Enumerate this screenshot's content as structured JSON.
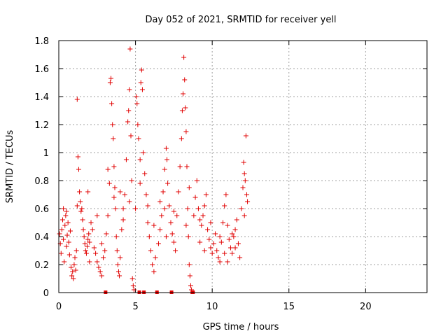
{
  "chart_data": {
    "type": "scatter",
    "title": "Day 052 of 2021, SRMTID for receiver yell",
    "xlabel": "GPS time / hours",
    "ylabel": "SRMTID / TECUs",
    "xlim": [
      0,
      24
    ],
    "ylim": [
      0,
      1.8
    ],
    "xticks": [
      0,
      5,
      10,
      15,
      20
    ],
    "xtick_labels": [
      "0",
      "5",
      "10",
      "15",
      "20"
    ],
    "yticks": [
      0,
      0.2,
      0.4,
      0.6,
      0.8,
      1,
      1.2,
      1.4,
      1.6,
      1.8
    ],
    "ytick_labels": [
      "0",
      "0.2",
      "0.4",
      "0.6",
      "0.8",
      "1",
      "1.2",
      "1.4",
      "1.6",
      "1.8"
    ],
    "grid": true,
    "marker": "plus",
    "color": "#e00000",
    "series": [
      {
        "name": "SRMTID",
        "points": [
          [
            0.05,
            0.42
          ],
          [
            0.1,
            0.35
          ],
          [
            0.15,
            0.28
          ],
          [
            0.2,
            0.45
          ],
          [
            0.25,
            0.52
          ],
          [
            0.3,
            0.38
          ],
          [
            0.35,
            0.22
          ],
          [
            0.4,
            0.48
          ],
          [
            0.45,
            0.55
          ],
          [
            0.5,
            0.33
          ],
          [
            0.55,
            0.41
          ],
          [
            0.6,
            0.5
          ],
          [
            0.65,
            0.36
          ],
          [
            0.7,
            0.27
          ],
          [
            0.75,
            0.44
          ],
          [
            0.8,
            0.18
          ],
          [
            0.85,
            0.12
          ],
          [
            0.9,
            0.15
          ],
          [
            0.95,
            0.1
          ],
          [
            1.0,
            0.2
          ],
          [
            1.05,
            0.25
          ],
          [
            1.1,
            0.16
          ],
          [
            1.15,
            0.3
          ],
          [
            1.2,
            1.38
          ],
          [
            1.25,
            0.97
          ],
          [
            1.3,
            0.88
          ],
          [
            1.35,
            0.72
          ],
          [
            1.4,
            0.65
          ],
          [
            1.45,
            0.58
          ],
          [
            1.5,
            0.6
          ],
          [
            1.55,
            0.52
          ],
          [
            1.6,
            0.45
          ],
          [
            1.65,
            0.4
          ],
          [
            1.7,
            0.35
          ],
          [
            1.75,
            0.3
          ],
          [
            1.8,
            0.28
          ],
          [
            1.85,
            0.33
          ],
          [
            1.9,
            0.38
          ],
          [
            1.95,
            0.42
          ],
          [
            2.0,
            0.36
          ],
          [
            2.1,
            0.5
          ],
          [
            2.2,
            0.45
          ],
          [
            2.3,
            0.32
          ],
          [
            2.4,
            0.28
          ],
          [
            2.5,
            0.22
          ],
          [
            2.6,
            0.18
          ],
          [
            2.7,
            0.15
          ],
          [
            2.8,
            0.12
          ],
          [
            2.9,
            0.25
          ],
          [
            3.0,
            0.3
          ],
          [
            3.05,
            0.0
          ],
          [
            3.1,
            0.42
          ],
          [
            3.2,
            0.55
          ],
          [
            3.3,
            0.78
          ],
          [
            3.35,
            1.5
          ],
          [
            3.4,
            1.53
          ],
          [
            3.45,
            1.35
          ],
          [
            3.5,
            1.2
          ],
          [
            3.55,
            1.1
          ],
          [
            3.6,
            0.9
          ],
          [
            3.65,
            0.75
          ],
          [
            3.7,
            0.6
          ],
          [
            3.75,
            0.4
          ],
          [
            3.8,
            0.3
          ],
          [
            3.85,
            0.2
          ],
          [
            3.9,
            0.15
          ],
          [
            3.95,
            0.12
          ],
          [
            4.0,
            0.25
          ],
          [
            4.1,
            0.45
          ],
          [
            4.2,
            0.6
          ],
          [
            4.3,
            0.7
          ],
          [
            4.4,
            0.95
          ],
          [
            4.5,
            1.22
          ],
          [
            4.55,
            1.3
          ],
          [
            4.6,
            1.45
          ],
          [
            4.65,
            1.74
          ],
          [
            4.7,
            1.12
          ],
          [
            4.75,
            0.8
          ],
          [
            4.8,
            0.1
          ],
          [
            4.85,
            0.05
          ],
          [
            4.9,
            0.02
          ],
          [
            5.0,
            0.6
          ],
          [
            5.05,
            1.4
          ],
          [
            5.1,
            1.35
          ],
          [
            5.15,
            1.2
          ],
          [
            5.2,
            1.1
          ],
          [
            5.25,
            0.0
          ],
          [
            5.3,
            0.95
          ],
          [
            5.35,
            1.5
          ],
          [
            5.4,
            1.59
          ],
          [
            5.45,
            1.45
          ],
          [
            5.5,
            1.0
          ],
          [
            5.55,
            0.0
          ],
          [
            5.6,
            0.85
          ],
          [
            5.7,
            0.7
          ],
          [
            5.8,
            0.5
          ],
          [
            5.9,
            0.4
          ],
          [
            6.0,
            0.3
          ],
          [
            6.1,
            0.2
          ],
          [
            6.2,
            0.15
          ],
          [
            6.3,
            0.25
          ],
          [
            6.4,
            0.0
          ],
          [
            6.5,
            0.35
          ],
          [
            6.6,
            0.45
          ],
          [
            6.7,
            0.55
          ],
          [
            6.8,
            0.72
          ],
          [
            6.9,
            0.88
          ],
          [
            7.0,
            1.03
          ],
          [
            7.05,
            0.95
          ],
          [
            7.1,
            0.78
          ],
          [
            7.2,
            0.62
          ],
          [
            7.3,
            0.5
          ],
          [
            7.35,
            0.0
          ],
          [
            7.4,
            0.42
          ],
          [
            7.5,
            0.36
          ],
          [
            7.6,
            0.3
          ],
          [
            7.7,
            0.55
          ],
          [
            7.8,
            0.72
          ],
          [
            7.9,
            0.9
          ],
          [
            8.0,
            1.1
          ],
          [
            8.05,
            1.3
          ],
          [
            8.1,
            1.42
          ],
          [
            8.15,
            1.68
          ],
          [
            8.2,
            1.52
          ],
          [
            8.25,
            1.32
          ],
          [
            8.3,
            1.15
          ],
          [
            8.35,
            0.9
          ],
          [
            8.4,
            0.6
          ],
          [
            8.45,
            0.4
          ],
          [
            8.5,
            0.2
          ],
          [
            8.55,
            0.12
          ],
          [
            8.6,
            0.05
          ],
          [
            8.65,
            0.02
          ],
          [
            8.7,
            0.0
          ],
          [
            8.75,
            0.0
          ],
          [
            8.8,
            0.55
          ],
          [
            8.9,
            0.68
          ],
          [
            9.0,
            0.8
          ],
          [
            9.1,
            0.6
          ],
          [
            9.2,
            0.52
          ],
          [
            9.3,
            0.48
          ],
          [
            9.4,
            0.55
          ],
          [
            9.5,
            0.62
          ],
          [
            9.6,
            0.7
          ],
          [
            9.7,
            0.45
          ],
          [
            9.8,
            0.38
          ],
          [
            9.9,
            0.32
          ],
          [
            10.0,
            0.28
          ],
          [
            10.1,
            0.35
          ],
          [
            10.2,
            0.42
          ],
          [
            10.3,
            0.3
          ],
          [
            10.4,
            0.25
          ],
          [
            10.5,
            0.22
          ],
          [
            10.6,
            0.36
          ],
          [
            10.7,
            0.5
          ],
          [
            10.8,
            0.62
          ],
          [
            10.9,
            0.7
          ],
          [
            11.0,
            0.48
          ],
          [
            11.1,
            0.38
          ],
          [
            11.2,
            0.32
          ],
          [
            11.3,
            0.28
          ],
          [
            11.4,
            0.4
          ],
          [
            11.5,
            0.45
          ],
          [
            11.6,
            0.52
          ],
          [
            11.7,
            0.35
          ],
          [
            11.8,
            0.25
          ],
          [
            11.9,
            0.6
          ],
          [
            12.0,
            0.75
          ],
          [
            12.05,
            0.93
          ],
          [
            12.1,
            0.85
          ],
          [
            12.15,
            0.8
          ],
          [
            12.2,
            1.12
          ],
          [
            12.25,
            0.7
          ],
          [
            12.3,
            0.65
          ],
          [
            0.5,
            0.58
          ],
          [
            1.2,
            0.62
          ],
          [
            2.5,
            0.55
          ],
          [
            3.6,
            0.68
          ],
          [
            4.2,
            0.52
          ],
          [
            5.8,
            0.62
          ],
          [
            6.6,
            0.65
          ],
          [
            7.5,
            0.58
          ],
          [
            8.3,
            0.48
          ],
          [
            9.2,
            0.36
          ],
          [
            10.5,
            0.4
          ],
          [
            11.3,
            0.42
          ],
          [
            2.0,
            0.22
          ],
          [
            2.8,
            0.35
          ],
          [
            4.0,
            0.72
          ],
          [
            6.2,
            0.48
          ],
          [
            7.0,
            0.4
          ],
          [
            9.5,
            0.3
          ],
          [
            10.8,
            0.28
          ],
          [
            11.5,
            0.32
          ],
          [
            0.3,
            0.6
          ],
          [
            1.9,
            0.72
          ],
          [
            3.2,
            0.88
          ],
          [
            4.6,
            0.65
          ],
          [
            5.3,
            0.78
          ],
          [
            6.9,
            0.6
          ],
          [
            8.5,
            0.75
          ],
          [
            9.9,
            0.5
          ],
          [
            11.0,
            0.22
          ],
          [
            12.1,
            0.55
          ]
        ]
      }
    ]
  }
}
